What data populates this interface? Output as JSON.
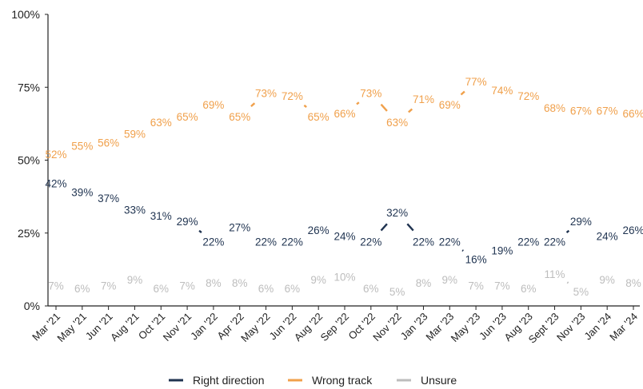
{
  "chart_data": {
    "type": "line",
    "categories": [
      "Mar '21",
      "May '21",
      "Jun '21",
      "Aug '21",
      "Oct '21",
      "Nov '21",
      "Jan '22",
      "Apr '22",
      "May '22",
      "Jun '22",
      "Aug '22",
      "Sep '22",
      "Oct '22",
      "Nov '22",
      "Jan '23",
      "Mar '23",
      "May '23",
      "Jun '23",
      "Aug '23",
      "Sept '23",
      "Nov '23",
      "Jan '24",
      "Mar '24"
    ],
    "series": [
      {
        "name": "Right direction",
        "color": "#1f3350",
        "values": [
          42,
          39,
          37,
          33,
          31,
          29,
          22,
          27,
          22,
          22,
          26,
          24,
          22,
          32,
          22,
          22,
          16,
          19,
          22,
          22,
          29,
          24,
          26
        ]
      },
      {
        "name": "Wrong track",
        "color": "#f0a04b",
        "values": [
          52,
          55,
          56,
          59,
          63,
          65,
          69,
          65,
          73,
          72,
          65,
          66,
          73,
          63,
          71,
          69,
          77,
          74,
          72,
          68,
          67,
          67,
          66
        ]
      },
      {
        "name": "Unsure",
        "color": "#bdbdbd",
        "values": [
          7,
          6,
          7,
          9,
          6,
          7,
          8,
          8,
          6,
          6,
          9,
          10,
          6,
          5,
          8,
          9,
          7,
          7,
          6,
          11,
          5,
          9,
          8
        ]
      }
    ],
    "yticks": [
      "0%",
      "25%",
      "50%",
      "75%",
      "100%"
    ],
    "ylim": [
      0,
      100
    ],
    "value_suffix": "%",
    "legend_position": "bottom",
    "grid": false
  }
}
